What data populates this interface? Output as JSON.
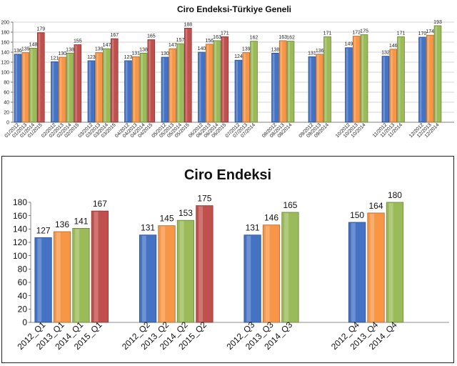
{
  "chart_data": [
    {
      "type": "bar",
      "title": "Ciro Endeksi-Türkiye Geneli",
      "xlabel": "",
      "ylabel": "",
      "ylim": [
        0,
        200
      ],
      "yticks": [
        0,
        20,
        40,
        60,
        80,
        100,
        120,
        140,
        160,
        180,
        200
      ],
      "grid": true,
      "legend": "none",
      "groups": [
        {
          "categories": [
            "01/2012",
            "01/2013",
            "01/2014",
            "01/2015"
          ],
          "values": [
            136,
            139,
            148,
            179
          ]
        },
        {
          "categories": [
            "02/2012",
            "02/2013",
            "02/2014",
            "02/2015"
          ],
          "values": [
            121,
            130,
            138,
            155
          ]
        },
        {
          "categories": [
            "03/2012",
            "03/2013",
            "03/2014",
            "03/2015"
          ],
          "values": [
            123,
            139,
            147,
            167
          ]
        },
        {
          "categories": [
            "04/2012",
            "04/2013",
            "04/2014",
            "04/2015"
          ],
          "values": [
            123,
            131,
            138,
            165
          ]
        },
        {
          "categories": [
            "05/2012",
            "05/2013",
            "05/2014",
            "05/2015"
          ],
          "values": [
            130,
            147,
            157,
            188
          ]
        },
        {
          "categories": [
            "06/2012",
            "06/2013",
            "06/2014",
            "06/2015"
          ],
          "values": [
            140,
            156,
            163,
            171
          ]
        },
        {
          "categories": [
            "07/2012",
            "07/2013",
            "07/2014"
          ],
          "values": [
            124,
            139,
            162
          ]
        },
        {
          "categories": [
            "08/2012",
            "08/2013",
            "08/2014"
          ],
          "values": [
            138,
            163,
            162
          ]
        },
        {
          "categories": [
            "09/2012",
            "09/2013",
            "09/2014"
          ],
          "values": [
            131,
            136,
            171
          ]
        },
        {
          "categories": [
            "10/2012",
            "10/2013",
            "10/2014"
          ],
          "values": [
            149,
            172,
            175
          ]
        },
        {
          "categories": [
            "11/2012",
            "11/2013",
            "11/2014"
          ],
          "values": [
            132,
            146,
            171
          ]
        },
        {
          "categories": [
            "12/2012",
            "12/2013",
            "12/2014"
          ],
          "values": [
            170,
            174,
            193
          ]
        }
      ]
    },
    {
      "type": "bar",
      "title": "Ciro Endeksi",
      "xlabel": "",
      "ylabel": "",
      "ylim": [
        0,
        180
      ],
      "yticks": [
        0,
        20,
        40,
        60,
        80,
        100,
        120,
        140,
        160,
        180
      ],
      "grid": false,
      "legend": "none",
      "groups": [
        {
          "categories": [
            "2012_Q1",
            "2013_Q1",
            "2014_Q1",
            "2015_Q1"
          ],
          "values": [
            127,
            136,
            141,
            167
          ]
        },
        {
          "categories": [
            "2012_Q2",
            "2013_Q2",
            "2014_Q2",
            "2015_Q2"
          ],
          "values": [
            131,
            145,
            153,
            175
          ]
        },
        {
          "categories": [
            "2012_Q3",
            "2013_Q3",
            "2014_Q3"
          ],
          "values": [
            131,
            146,
            165
          ]
        },
        {
          "categories": [
            "2012_Q4",
            "2013_Q4",
            "2014_Q4"
          ],
          "values": [
            150,
            164,
            180
          ]
        }
      ]
    }
  ],
  "series_colors": [
    "#4472C4",
    "#F79646",
    "#9BBB59",
    "#C0504D"
  ]
}
